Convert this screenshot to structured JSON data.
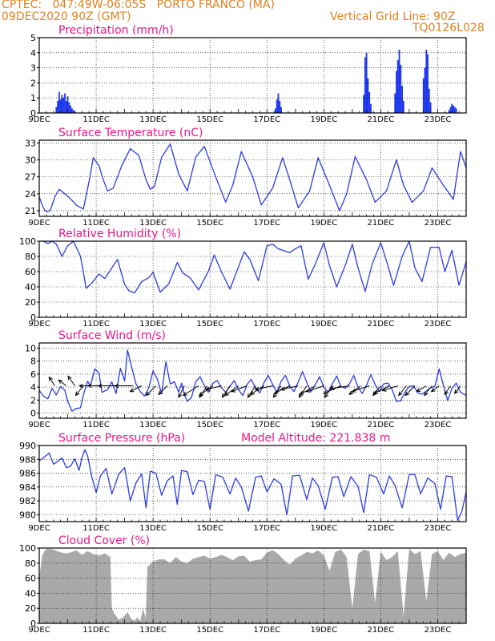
{
  "header": {
    "line1": "CPTEC:   047:49W-06:05S   PORTO FRANCO (MA)",
    "line2": "09DEC2020 90Z (GMT)",
    "grid_note": "Vertical Grid Line: 90Z",
    "code": "TQ0126L028"
  },
  "colors": {
    "header": "#e0821e",
    "panel_title": "#e8178a",
    "series_line": "#2a3ce6",
    "precip_bar": "#1a35ee",
    "cloud_fill": "#a9a9a9",
    "wind_arrow": "#000000"
  },
  "date_ticks": [
    "9DEC",
    "11DEC",
    "13DEC",
    "15DEC",
    "17DEC",
    "19DEC",
    "21DEC",
    "23DEC"
  ],
  "chart_data": [
    {
      "id": "precip",
      "type": "bar",
      "title": "Precipitation (mm/h)",
      "ylim": [
        0,
        5
      ],
      "yticks": [
        0,
        1,
        2,
        3,
        4,
        5
      ],
      "grid": true,
      "x": [
        0.6,
        0.65,
        0.7,
        0.75,
        0.8,
        0.85,
        0.9,
        0.95,
        1.0,
        1.05,
        1.1,
        1.15,
        1.2,
        1.25,
        8.3,
        8.35,
        8.4,
        8.45,
        8.5,
        11.4,
        11.45,
        11.5,
        11.55,
        11.6,
        11.65,
        12.5,
        12.55,
        12.6,
        12.65,
        12.7,
        12.75,
        12.8,
        13.5,
        13.55,
        13.6,
        13.65,
        13.7,
        13.75,
        14.4,
        14.45,
        14.5,
        14.55,
        14.6,
        14.65
      ],
      "values": [
        0.4,
        0.8,
        1.4,
        0.9,
        1.2,
        1.0,
        1.3,
        0.8,
        1.1,
        0.7,
        0.5,
        0.3,
        0.2,
        0.1,
        0.3,
        0.9,
        1.3,
        0.8,
        0.4,
        1.2,
        3.7,
        4.0,
        2.3,
        1.4,
        0.6,
        1.3,
        2.8,
        3.5,
        4.2,
        3.2,
        1.8,
        0.8,
        2.3,
        3.0,
        4.2,
        3.9,
        1.6,
        0.7,
        0.2,
        0.4,
        0.6,
        0.5,
        0.4,
        0.3
      ]
    },
    {
      "id": "temp",
      "type": "line",
      "title": "Surface Temperature (nC)",
      "ylim": [
        20,
        33.5
      ],
      "yticks": [
        21,
        24,
        27,
        30,
        33
      ],
      "grid": true,
      "x": [
        0,
        0.1,
        0.2,
        0.3,
        0.4,
        0.55,
        0.7,
        0.9,
        1.1,
        1.3,
        1.55,
        1.75,
        1.9,
        2.1,
        2.25,
        2.4,
        2.6,
        2.9,
        3.2,
        3.5,
        3.75,
        3.9,
        4.05,
        4.3,
        4.6,
        4.9,
        5.2,
        5.5,
        5.8,
        6.2,
        6.55,
        6.8,
        7.1,
        7.5,
        7.8,
        8.2,
        8.55,
        8.8,
        9.1,
        9.5,
        9.8,
        10.2,
        10.55,
        10.8,
        11.1,
        11.5,
        11.8,
        12.2,
        12.55,
        12.8,
        13.1,
        13.5,
        13.8,
        14.2,
        14.55,
        14.8,
        15.0
      ],
      "values": [
        23.5,
        22,
        21,
        20.8,
        21.2,
        23.5,
        24.8,
        24,
        23.1,
        22,
        21.3,
        26.2,
        30.4,
        29,
        26.5,
        24.5,
        25,
        29,
        32,
        30.8,
        26.5,
        24.8,
        25.3,
        30.5,
        32.8,
        27.5,
        24.5,
        30.5,
        32.4,
        27,
        22.5,
        25.5,
        31.5,
        27,
        22,
        25,
        30.4,
        26.5,
        21.5,
        24.5,
        30.4,
        25.5,
        21,
        24,
        30.6,
        26.5,
        22.5,
        24.5,
        30,
        25.5,
        22.5,
        24.5,
        28.6,
        25.5,
        23,
        31.5,
        28.6
      ]
    },
    {
      "id": "rh",
      "type": "line",
      "title": "Relative Humidity (%)",
      "ylim": [
        0,
        100
      ],
      "yticks": [
        0,
        20,
        40,
        60,
        80,
        100
      ],
      "grid": true,
      "x": [
        0,
        0.15,
        0.3,
        0.45,
        0.6,
        0.8,
        1.0,
        1.2,
        1.45,
        1.65,
        1.85,
        2.1,
        2.3,
        2.5,
        2.75,
        3.0,
        3.15,
        3.35,
        3.6,
        3.85,
        4.0,
        4.25,
        4.55,
        4.85,
        5.05,
        5.3,
        5.6,
        5.95,
        6.15,
        6.4,
        6.7,
        7.0,
        7.2,
        7.4,
        7.7,
        8.0,
        8.2,
        8.4,
        8.8,
        9.0,
        9.2,
        9.45,
        9.7,
        10.0,
        10.2,
        10.45,
        10.75,
        11.0,
        11.2,
        11.45,
        11.7,
        12.0,
        12.2,
        12.45,
        12.75,
        13.0,
        13.2,
        13.45,
        13.75,
        14.05,
        14.25,
        14.5,
        14.75,
        15.0
      ],
      "values": [
        100,
        100,
        97,
        100,
        96,
        80,
        94,
        100,
        80,
        38,
        45,
        57,
        51,
        62,
        76,
        43,
        35,
        32,
        47,
        52,
        59,
        33,
        44,
        72,
        58,
        52,
        36,
        61,
        82,
        60,
        37,
        66,
        86,
        76,
        48,
        94,
        96,
        90,
        85,
        90,
        94,
        50,
        70,
        98,
        68,
        40,
        68,
        96,
        65,
        34,
        70,
        98,
        74,
        42,
        80,
        100,
        65,
        47,
        92,
        92,
        60,
        88,
        42,
        73
      ]
    },
    {
      "id": "wind",
      "type": "line",
      "title": "Surface Wind (m/s)",
      "ylim": [
        -0.8,
        10.8
      ],
      "yticks": [
        0,
        2,
        4,
        6,
        8,
        10
      ],
      "grid": true,
      "x": [
        0,
        0.15,
        0.3,
        0.45,
        0.6,
        0.75,
        0.9,
        1.0,
        1.15,
        1.3,
        1.45,
        1.55,
        1.7,
        1.8,
        1.95,
        2.1,
        2.2,
        2.4,
        2.55,
        2.7,
        2.85,
        3.0,
        3.1,
        3.25,
        3.4,
        3.55,
        3.7,
        3.85,
        4.0,
        4.15,
        4.3,
        4.45,
        4.6,
        4.75,
        4.9,
        5.0,
        5.1,
        5.2,
        5.35,
        5.5,
        5.65,
        5.8,
        5.95,
        6.1,
        6.25,
        6.4,
        6.55,
        6.7,
        6.85,
        7.0,
        7.15,
        7.3,
        7.45,
        7.6,
        7.75,
        7.9,
        8.05,
        8.2,
        8.35,
        8.5,
        8.65,
        8.8,
        8.95,
        9.1,
        9.25,
        9.4,
        9.55,
        9.7,
        9.85,
        10.0,
        10.15,
        10.3,
        10.45,
        10.6,
        10.75,
        10.9,
        11.05,
        11.2,
        11.35,
        11.5,
        11.65,
        11.8,
        11.95,
        12.1,
        12.25,
        12.4,
        12.55,
        12.7,
        12.85,
        13.0,
        13.15,
        13.3,
        13.45,
        13.6,
        13.75,
        13.9,
        14.05,
        14.2,
        14.35,
        14.5,
        14.65,
        14.8,
        15.0
      ],
      "values": [
        3.5,
        2.6,
        2.2,
        3.8,
        2.8,
        4.1,
        3.5,
        1.8,
        0.3,
        0.7,
        0.8,
        2.8,
        4.9,
        4.2,
        6.8,
        6.2,
        3.2,
        3.6,
        4.8,
        3.0,
        6.9,
        4.9,
        9.7,
        7.0,
        4.5,
        3.3,
        2.6,
        3.9,
        6.5,
        5.2,
        3.0,
        7.9,
        4.5,
        4.8,
        3.2,
        4.6,
        2.8,
        1.8,
        2.4,
        4.8,
        5.6,
        4.2,
        3.2,
        4.6,
        5.0,
        3.9,
        3.2,
        4.1,
        5.0,
        3.6,
        2.7,
        4.4,
        5.2,
        3.8,
        3.1,
        4.7,
        5.8,
        4.4,
        3.2,
        4.9,
        5.8,
        4.2,
        3.3,
        4.8,
        6.4,
        4.7,
        3.3,
        4.4,
        5.6,
        4.0,
        3.2,
        4.5,
        5.7,
        4.1,
        3.8,
        4.5,
        5.8,
        4.0,
        3.0,
        4.3,
        5.9,
        4.4,
        3.3,
        4.5,
        4.6,
        3.6,
        1.8,
        1.9,
        3.2,
        4.1,
        4.2,
        3.1,
        2.9,
        3.4,
        3.9,
        4.1,
        6.8,
        4.3,
        1.9,
        3.8,
        4.6,
        3.2,
        2.7
      ]
    },
    {
      "id": "pressure",
      "type": "line",
      "title": "Surface Pressure (hPa)",
      "annotation": "Model Altitude: 221.838  m",
      "ylim": [
        979,
        990
      ],
      "yticks": [
        980,
        982,
        984,
        986,
        988,
        990
      ],
      "grid": true,
      "x": [
        0,
        0.2,
        0.35,
        0.5,
        0.65,
        0.8,
        0.95,
        1.1,
        1.25,
        1.4,
        1.5,
        1.6,
        1.7,
        1.85,
        2.0,
        2.15,
        2.35,
        2.55,
        2.8,
        3.0,
        3.2,
        3.4,
        3.6,
        3.75,
        3.9,
        4.1,
        4.3,
        4.5,
        4.7,
        4.85,
        5.0,
        5.2,
        5.4,
        5.6,
        5.8,
        6.0,
        6.2,
        6.45,
        6.7,
        6.9,
        7.1,
        7.35,
        7.6,
        7.8,
        8.0,
        8.25,
        8.5,
        8.7,
        8.9,
        9.15,
        9.4,
        9.6,
        9.8,
        10.05,
        10.3,
        10.5,
        10.7,
        10.95,
        11.2,
        11.4,
        11.6,
        11.85,
        12.1,
        12.3,
        12.5,
        12.75,
        13.0,
        13.2,
        13.4,
        13.65,
        13.9,
        14.1,
        14.3,
        14.5,
        14.7,
        14.85,
        15.0
      ],
      "values": [
        987.8,
        988.4,
        988.9,
        987.3,
        987.7,
        988.2,
        986.8,
        987.0,
        988.1,
        986.4,
        988.2,
        989.4,
        988.5,
        985.4,
        983.2,
        985.6,
        986.7,
        983.0,
        985.9,
        986.8,
        982.0,
        984.6,
        985.9,
        981.0,
        986.3,
        986.0,
        982.8,
        984.9,
        985.6,
        981.5,
        986.4,
        986.2,
        982.9,
        985.0,
        984.8,
        980.8,
        985.8,
        985.4,
        983.0,
        985.3,
        984.0,
        980.5,
        985.4,
        985.6,
        983.3,
        985.2,
        984.4,
        980.0,
        985.6,
        985.7,
        982.2,
        985.3,
        984.2,
        980.8,
        985.4,
        985.5,
        982.6,
        985.5,
        984.1,
        980.3,
        985.8,
        985.4,
        983.0,
        985.6,
        984.2,
        981.0,
        985.8,
        985.8,
        983.0,
        985.3,
        984.5,
        980.8,
        985.6,
        985.5,
        979.2,
        980.5,
        983.3
      ]
    },
    {
      "id": "cloud",
      "type": "area",
      "title": "Cloud Cover (%)",
      "ylim": [
        0,
        100
      ],
      "yticks": [
        0,
        20,
        40,
        60,
        80,
        100
      ],
      "grid": true,
      "x": [
        0,
        0.1,
        0.2,
        0.3,
        0.5,
        0.7,
        0.9,
        1.1,
        1.3,
        1.5,
        1.7,
        1.9,
        2.1,
        2.3,
        2.5,
        2.55,
        2.65,
        2.8,
        2.95,
        3.1,
        3.25,
        3.35,
        3.45,
        3.55,
        3.65,
        3.72,
        3.74,
        3.8,
        4.0,
        4.2,
        4.4,
        4.6,
        4.8,
        5.0,
        5.2,
        5.4,
        5.6,
        5.8,
        6.0,
        6.2,
        6.4,
        6.6,
        6.8,
        7.0,
        7.2,
        7.4,
        7.6,
        7.8,
        8.0,
        8.2,
        8.4,
        8.6,
        8.8,
        9.0,
        9.2,
        9.4,
        9.6,
        9.8,
        10.0,
        10.2,
        10.4,
        10.6,
        10.8,
        11.0,
        11.2,
        11.4,
        11.6,
        11.8,
        12.0,
        12.2,
        12.4,
        12.6,
        12.8,
        13.0,
        13.2,
        13.4,
        13.6,
        13.8,
        14.0,
        14.2,
        14.4,
        14.6,
        14.8,
        15.0
      ],
      "values": [
        60,
        90,
        97,
        99,
        98,
        95,
        93,
        94,
        97,
        91,
        96,
        92,
        90,
        93,
        88,
        20,
        12,
        5,
        8,
        15,
        5,
        4,
        8,
        3,
        20,
        10,
        5,
        75,
        82,
        85,
        85,
        80,
        88,
        82,
        80,
        86,
        88,
        90,
        86,
        88,
        91,
        88,
        84,
        89,
        90,
        82,
        84,
        85,
        94,
        97,
        92,
        84,
        78,
        86,
        90,
        95,
        93,
        97,
        90,
        70,
        95,
        98,
        88,
        20,
        92,
        98,
        96,
        28,
        95,
        84,
        88,
        96,
        10,
        99,
        92,
        96,
        30,
        92,
        96,
        84,
        94,
        88,
        92,
        94
      ]
    }
  ],
  "wind_arrows": [
    {
      "t": 0.55,
      "u": -0.6,
      "v": 0.9
    },
    {
      "t": 0.95,
      "u": -0.8,
      "v": 0.6
    },
    {
      "t": 1.25,
      "u": -0.7,
      "v": 1.0
    },
    {
      "t": 1.55,
      "u": -0.8,
      "v": -1.0
    },
    {
      "t": 1.95,
      "u": -1.6,
      "v": 0.0
    },
    {
      "t": 2.45,
      "u": -2.2,
      "v": 0.0
    },
    {
      "t": 2.95,
      "u": -2.6,
      "v": 0.0
    },
    {
      "t": 3.3,
      "u": -1.9,
      "v": 0.0
    },
    {
      "t": 3.6,
      "u": -1.2,
      "v": -0.6
    },
    {
      "t": 4.1,
      "u": -1.0,
      "v": -1.0
    },
    {
      "t": 4.5,
      "u": -0.9,
      "v": -0.9
    },
    {
      "t": 5.1,
      "u": -0.6,
      "v": -1.2
    },
    {
      "t": 5.6,
      "u": -1.6,
      "v": -1.0
    },
    {
      "t": 5.9,
      "u": -0.8,
      "v": -1.2
    },
    {
      "t": 6.1,
      "u": -1.4,
      "v": -1.0
    },
    {
      "t": 6.4,
      "u": -1.6,
      "v": -0.4
    },
    {
      "t": 6.7,
      "u": -0.8,
      "v": -1.2
    },
    {
      "t": 7.0,
      "u": -1.4,
      "v": -1.0
    },
    {
      "t": 7.3,
      "u": -1.6,
      "v": -0.6
    },
    {
      "t": 7.6,
      "u": -0.8,
      "v": -1.2
    },
    {
      "t": 7.9,
      "u": -1.4,
      "v": -0.9
    },
    {
      "t": 8.2,
      "u": -1.8,
      "v": -0.4
    },
    {
      "t": 8.5,
      "u": -0.8,
      "v": -1.2
    },
    {
      "t": 8.8,
      "u": -1.6,
      "v": -0.8
    },
    {
      "t": 9.1,
      "u": -1.8,
      "v": -0.4
    },
    {
      "t": 9.4,
      "u": -0.8,
      "v": -1.2
    },
    {
      "t": 9.7,
      "u": -1.6,
      "v": -0.9
    },
    {
      "t": 10.0,
      "u": -1.8,
      "v": -0.6
    },
    {
      "t": 10.3,
      "u": -0.8,
      "v": -1.2
    },
    {
      "t": 10.6,
      "u": -1.8,
      "v": -0.8
    },
    {
      "t": 10.9,
      "u": -2.0,
      "v": -0.3
    },
    {
      "t": 11.3,
      "u": -1.2,
      "v": -0.9
    },
    {
      "t": 11.6,
      "u": -1.8,
      "v": -0.6
    },
    {
      "t": 12.0,
      "u": -0.8,
      "v": -1.0
    },
    {
      "t": 12.3,
      "u": -1.6,
      "v": -0.8
    },
    {
      "t": 12.6,
      "u": -1.6,
      "v": -0.5
    },
    {
      "t": 12.9,
      "u": -0.8,
      "v": -1.0
    },
    {
      "t": 13.2,
      "u": -1.0,
      "v": -1.0
    },
    {
      "t": 13.6,
      "u": -1.0,
      "v": -0.6
    },
    {
      "t": 13.8,
      "u": -0.8,
      "v": -1.0
    },
    {
      "t": 14.05,
      "u": -0.8,
      "v": -0.6
    },
    {
      "t": 14.45,
      "u": -0.6,
      "v": -0.9
    },
    {
      "t": 14.8,
      "u": -0.6,
      "v": -0.8
    }
  ]
}
